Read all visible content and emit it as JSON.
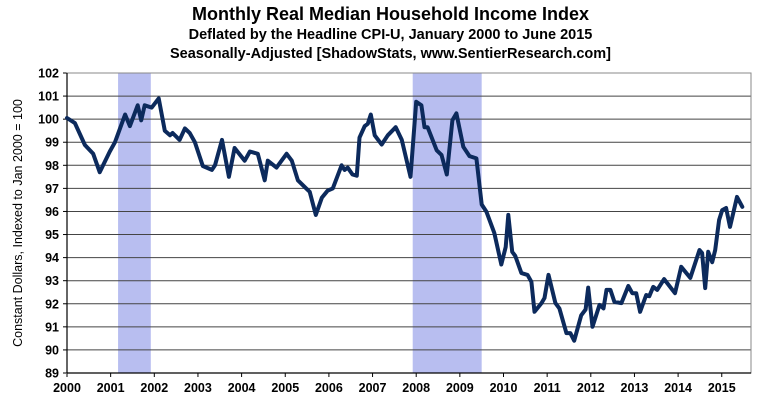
{
  "chart_data": {
    "type": "line",
    "title": "Monthly Real Median Household Income Index",
    "subtitle": [
      "Deflated by the Headline CPI-U, January 2000 to June 2015",
      "Seasonally-Adjusted [ShadowStats, www.SentierResearch.com]"
    ],
    "xlabel": "",
    "ylabel": "Constant Dollars, Indexed to Jan 2000 = 100",
    "xlim": [
      2000,
      2015.67
    ],
    "ylim": [
      89,
      102
    ],
    "x_ticks": [
      "2000",
      "2001",
      "2002",
      "2003",
      "2004",
      "2005",
      "2006",
      "2007",
      "2008",
      "2009",
      "2010",
      "2011",
      "2012",
      "2013",
      "2014",
      "2015"
    ],
    "y_ticks": [
      "89",
      "90",
      "91",
      "92",
      "93",
      "94",
      "95",
      "96",
      "97",
      "98",
      "99",
      "100",
      "101",
      "102"
    ],
    "grid": true,
    "line_color": "#0c2a5c",
    "recession_color": "#b8bef0",
    "recessions": [
      [
        2001.17,
        2001.92
      ],
      [
        2007.92,
        2009.5
      ]
    ],
    "series": [
      {
        "x": [
          2000.0,
          2000.18,
          2000.41,
          2000.6,
          2000.75,
          2000.98,
          2001.1,
          2001.33,
          2001.44,
          2001.62,
          2001.7,
          2001.78,
          2001.94,
          2002.1,
          2002.24,
          2002.36,
          2002.42,
          2002.58,
          2002.7,
          2002.81,
          2002.93,
          2003.11,
          2003.32,
          2003.39,
          2003.55,
          2003.71,
          2003.84,
          2004.07,
          2004.19,
          2004.37,
          2004.53,
          2004.6,
          2004.8,
          2005.03,
          2005.15,
          2005.29,
          2005.45,
          2005.56,
          2005.7,
          2005.84,
          2005.97,
          2006.09,
          2006.29,
          2006.36,
          2006.43,
          2006.54,
          2006.64,
          2006.7,
          2006.82,
          2006.89,
          2006.96,
          2007.05,
          2007.21,
          2007.35,
          2007.53,
          2007.67,
          2007.87,
          2008.0,
          2008.12,
          2008.19,
          2008.26,
          2008.47,
          2008.58,
          2008.7,
          2008.83,
          2008.92,
          2009.08,
          2009.22,
          2009.38,
          2009.5,
          2009.61,
          2009.79,
          2009.95,
          2010.05,
          2010.11,
          2010.2,
          2010.27,
          2010.41,
          2010.55,
          2010.64,
          2010.71,
          2010.87,
          2010.94,
          2011.03,
          2011.19,
          2011.28,
          2011.44,
          2011.53,
          2011.62,
          2011.78,
          2011.88,
          2011.94,
          2012.04,
          2012.2,
          2012.29,
          2012.36,
          2012.45,
          2012.54,
          2012.7,
          2012.86,
          2012.95,
          2013.04,
          2013.13,
          2013.27,
          2013.34,
          2013.43,
          2013.52,
          2013.68,
          2013.93,
          2014.07,
          2014.28,
          2014.49,
          2014.55,
          2014.62,
          2014.69,
          2014.78,
          2014.85,
          2014.94,
          2015.01,
          2015.1,
          2015.19,
          2015.35,
          2015.47
        ],
        "y": [
          100.05,
          99.83,
          98.88,
          98.5,
          97.7,
          98.6,
          99.0,
          100.2,
          99.7,
          100.6,
          99.95,
          100.6,
          100.5,
          100.9,
          99.5,
          99.3,
          99.4,
          99.1,
          99.6,
          99.4,
          99.0,
          97.97,
          97.8,
          98.0,
          99.1,
          97.5,
          98.75,
          98.2,
          98.6,
          98.5,
          97.35,
          98.2,
          97.9,
          98.5,
          98.2,
          97.35,
          97.05,
          96.85,
          95.85,
          96.6,
          96.9,
          97.0,
          98.0,
          97.8,
          97.9,
          97.6,
          97.55,
          99.2,
          99.7,
          99.8,
          100.2,
          99.3,
          98.9,
          99.3,
          99.65,
          99.1,
          97.5,
          100.75,
          100.6,
          99.65,
          99.65,
          98.65,
          98.45,
          97.6,
          99.95,
          100.25,
          98.8,
          98.4,
          98.3,
          96.3,
          95.98,
          95.07,
          93.7,
          94.46,
          95.85,
          94.25,
          94.07,
          93.33,
          93.25,
          92.95,
          91.65,
          92.03,
          92.25,
          93.25,
          92.03,
          91.8,
          90.73,
          90.73,
          90.4,
          91.5,
          91.75,
          92.7,
          91.0,
          91.95,
          91.8,
          92.6,
          92.6,
          92.08,
          92.03,
          92.77,
          92.46,
          92.46,
          91.65,
          92.38,
          92.33,
          92.73,
          92.6,
          93.07,
          92.46,
          93.6,
          93.12,
          94.33,
          94.2,
          92.68,
          94.25,
          93.8,
          94.33,
          95.63,
          96.06,
          96.15,
          95.33,
          96.63,
          96.2
        ]
      }
    ]
  }
}
